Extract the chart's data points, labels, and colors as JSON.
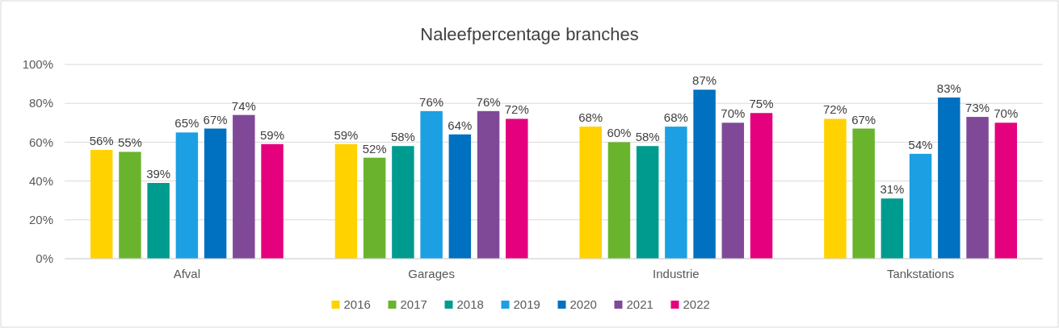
{
  "chart_data": {
    "type": "bar",
    "title": "Naleefpercentage branches",
    "categories": [
      "Afval",
      "Garages",
      "Industrie",
      "Tankstations"
    ],
    "series": [
      {
        "name": "2016",
        "color": "#ffd200",
        "values": [
          56,
          59,
          68,
          72
        ],
        "value_labels": [
          "56%",
          "59%",
          "68%",
          "72%"
        ]
      },
      {
        "name": "2017",
        "color": "#6ab42d",
        "values": [
          55,
          52,
          60,
          67
        ],
        "value_labels": [
          "55%",
          "52%",
          "60%",
          "67%"
        ]
      },
      {
        "name": "2018",
        "color": "#009b8f",
        "values": [
          39,
          58,
          58,
          31
        ],
        "value_labels": [
          "39%",
          "58%",
          "58%",
          "31%"
        ]
      },
      {
        "name": "2019",
        "color": "#1ca0e3",
        "values": [
          65,
          76,
          68,
          54
        ],
        "value_labels": [
          "65%",
          "76%",
          "68%",
          "54%"
        ]
      },
      {
        "name": "2020",
        "color": "#0070c0",
        "values": [
          67,
          64,
          87,
          83
        ],
        "value_labels": [
          "67%",
          "64%",
          "87%",
          "83%"
        ]
      },
      {
        "name": "2021",
        "color": "#804998",
        "values": [
          74,
          76,
          70,
          73
        ],
        "value_labels": [
          "74%",
          "76%",
          "70%",
          "73%"
        ]
      },
      {
        "name": "2022",
        "color": "#e5007d",
        "values": [
          59,
          72,
          75,
          70
        ],
        "value_labels": [
          "59%",
          "72%",
          "75%",
          "70%"
        ]
      }
    ],
    "ylim": [
      0,
      100
    ],
    "yticks": [
      {
        "value": 0,
        "label": "0%"
      },
      {
        "value": 20,
        "label": "20%"
      },
      {
        "value": 40,
        "label": "40%"
      },
      {
        "value": 60,
        "label": "60%"
      },
      {
        "value": 80,
        "label": "80%"
      },
      {
        "value": 100,
        "label": "100%"
      }
    ],
    "grid": "y",
    "legend": "bottom"
  }
}
